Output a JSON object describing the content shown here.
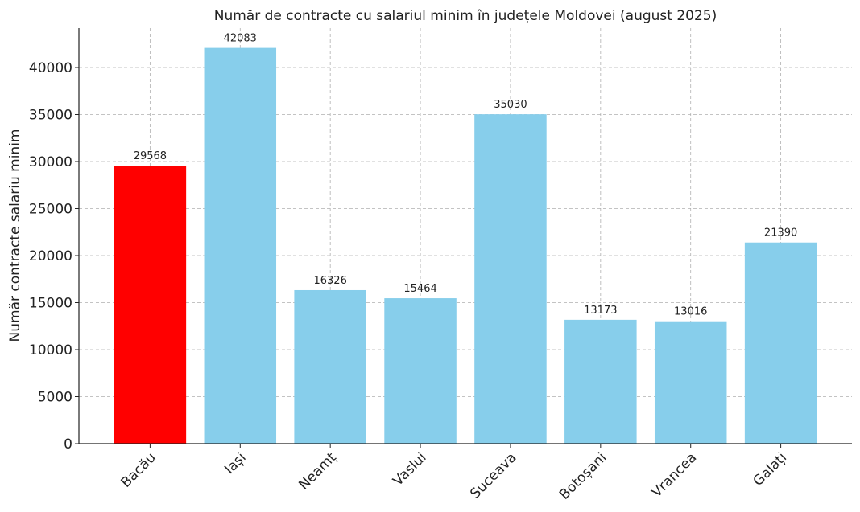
{
  "chart_data": {
    "type": "bar",
    "title": "Număr de contracte cu salariul minim în județele Moldovei (august 2025)",
    "xlabel": "",
    "ylabel": "Număr contracte salariu minim",
    "categories": [
      "Bacău",
      "Iași",
      "Neamț",
      "Vaslui",
      "Suceava",
      "Botoșani",
      "Vrancea",
      "Galați"
    ],
    "values": [
      29568,
      42083,
      16326,
      15464,
      35030,
      13173,
      13016,
      21390
    ],
    "colors": [
      "#ff0000",
      "#87ceeb",
      "#87ceeb",
      "#87ceeb",
      "#87ceeb",
      "#87ceeb",
      "#87ceeb",
      "#87ceeb"
    ],
    "ylim": [
      0,
      44187
    ],
    "yticks": [
      0,
      5000,
      10000,
      15000,
      20000,
      25000,
      30000,
      35000,
      40000
    ],
    "grid": true,
    "legend": "none"
  }
}
